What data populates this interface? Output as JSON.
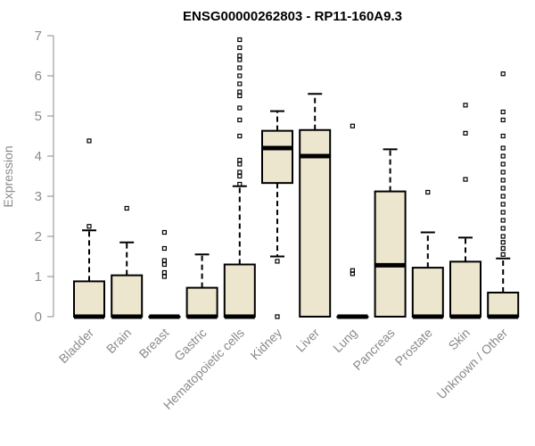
{
  "chart_data": {
    "type": "boxplot",
    "title": "ENSG00000262803 - RP11-160A9.3",
    "ylabel": "Expression",
    "xlabel": "",
    "ylim": [
      0,
      7
    ],
    "yticks": [
      0,
      1,
      2,
      3,
      4,
      5,
      6,
      7
    ],
    "grid": false,
    "colors": {
      "box_fill": "#ede6cf",
      "stroke": "#000000",
      "axis": "#8a8a8a"
    },
    "categories": [
      "Bladder",
      "Brain",
      "Breast",
      "Gastric",
      "Hematopoietic cells",
      "Kidney",
      "Liver",
      "Lung",
      "Pancreas",
      "Prostate",
      "Skin",
      "Unknown / Other"
    ],
    "boxes": [
      {
        "category": "Bladder",
        "whisker_low": 0,
        "q1": 0,
        "median": 0,
        "q3": 0.88,
        "whisker_high": 2.15,
        "outliers": [
          2.25,
          4.38
        ]
      },
      {
        "category": "Brain",
        "whisker_low": 0,
        "q1": 0,
        "median": 0,
        "q3": 1.03,
        "whisker_high": 1.85,
        "outliers": [
          2.7
        ]
      },
      {
        "category": "Breast",
        "whisker_low": 0,
        "q1": 0,
        "median": 0,
        "q3": 0,
        "whisker_high": 0,
        "outliers": [
          1.0,
          1.1,
          1.3,
          1.4,
          1.7,
          2.1
        ]
      },
      {
        "category": "Gastric",
        "whisker_low": 0,
        "q1": 0,
        "median": 0,
        "q3": 0.72,
        "whisker_high": 1.55,
        "outliers": []
      },
      {
        "category": "Hematopoietic cells",
        "whisker_low": 0,
        "q1": 0,
        "median": 0,
        "q3": 1.3,
        "whisker_high": 3.25,
        "outliers": [
          3.3,
          3.5,
          3.6,
          3.8,
          3.9,
          4.5,
          4.9,
          5.2,
          5.5,
          5.6,
          5.8,
          6.0,
          6.2,
          6.4,
          6.5,
          6.7,
          6.9
        ]
      },
      {
        "category": "Kidney",
        "whisker_low": 1.5,
        "q1": 3.33,
        "median": 4.2,
        "q3": 4.63,
        "whisker_high": 5.12,
        "outliers": [
          0,
          1.38
        ]
      },
      {
        "category": "Liver",
        "whisker_low": 0,
        "q1": 0,
        "median": 4.0,
        "q3": 4.65,
        "whisker_high": 5.55,
        "outliers": []
      },
      {
        "category": "Lung",
        "whisker_low": 0,
        "q1": 0,
        "median": 0,
        "q3": 0,
        "whisker_high": 0,
        "outliers": [
          1.07,
          1.15,
          4.75
        ]
      },
      {
        "category": "Pancreas",
        "whisker_low": 0,
        "q1": 0,
        "median": 1.28,
        "q3": 3.12,
        "whisker_high": 4.17,
        "outliers": []
      },
      {
        "category": "Prostate",
        "whisker_low": 0,
        "q1": 0,
        "median": 0,
        "q3": 1.22,
        "whisker_high": 2.1,
        "outliers": [
          3.1
        ]
      },
      {
        "category": "Skin",
        "whisker_low": 0,
        "q1": 0,
        "median": 0,
        "q3": 1.37,
        "whisker_high": 1.97,
        "outliers": [
          3.42,
          4.57,
          5.27
        ]
      },
      {
        "category": "Unknown / Other",
        "whisker_low": 0,
        "q1": 0,
        "median": 0,
        "q3": 0.6,
        "whisker_high": 1.45,
        "outliers": [
          1.55,
          1.7,
          1.85,
          2.0,
          2.2,
          2.4,
          2.6,
          2.8,
          3.0,
          3.2,
          3.4,
          3.6,
          3.8,
          4.0,
          4.2,
          4.5,
          4.9,
          5.1,
          6.05
        ]
      }
    ]
  }
}
